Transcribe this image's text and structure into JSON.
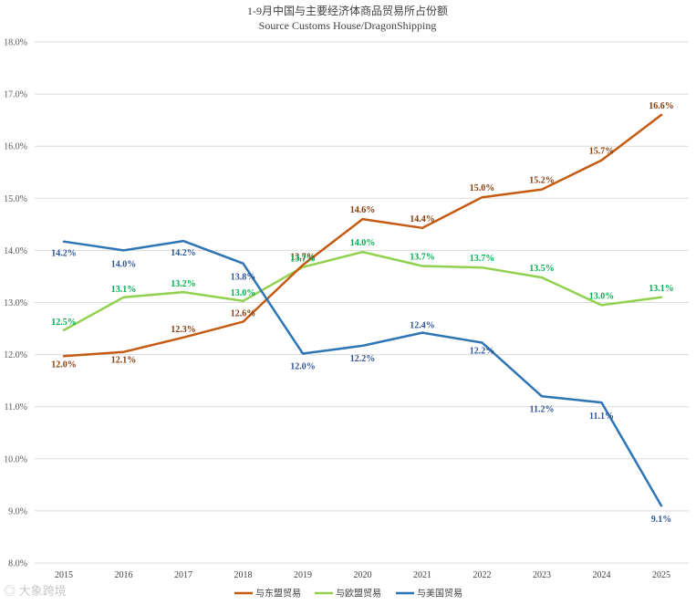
{
  "chart_data": {
    "type": "line",
    "title": "1-9月中国与主要经济体商品贸易所占份额",
    "subtitle": "Source Customs House/DragonShipping",
    "categories": [
      "2015",
      "2016",
      "2017",
      "2018",
      "2019",
      "2020",
      "2021",
      "2022",
      "2023",
      "2024",
      "2025"
    ],
    "ylim": [
      8.0,
      18.0
    ],
    "yticks": [
      "8.0%",
      "9.0%",
      "10.0%",
      "11.0%",
      "12.0%",
      "13.0%",
      "14.0%",
      "15.0%",
      "16.0%",
      "17.0%",
      "18.0%"
    ],
    "grid": true,
    "legend_position": "bottom",
    "series": [
      {
        "name": "与东盟贸易",
        "color": "#c55a11",
        "label_color": "#843c0c",
        "values": [
          11.97,
          12.05,
          12.33,
          12.63,
          13.72,
          14.6,
          14.43,
          15.02,
          15.17,
          15.73,
          16.6
        ],
        "labels": [
          "12.0%",
          "12.1%",
          "12.3%",
          "12.6%",
          "13.7%",
          "14.6%",
          "14.4%",
          "15.0%",
          "15.2%",
          "15.7%",
          "16.6%"
        ]
      },
      {
        "name": "与欧盟贸易",
        "color": "#92d050",
        "label_color": "#00b050",
        "values": [
          12.47,
          13.1,
          13.2,
          13.03,
          13.68,
          13.97,
          13.7,
          13.67,
          13.48,
          12.95,
          13.1
        ],
        "labels": [
          "12.5%",
          "13.1%",
          "13.2%",
          "13.0%",
          "13.7%",
          "14.0%",
          "13.7%",
          "13.7%",
          "13.5%",
          "13.0%",
          "13.1%"
        ]
      },
      {
        "name": "与美国贸易",
        "color": "#2e75b6",
        "label_color": "#2f5597",
        "values": [
          14.17,
          14.0,
          14.18,
          13.75,
          12.02,
          12.17,
          12.42,
          12.23,
          11.2,
          11.08,
          9.1
        ],
        "labels": [
          "14.2%",
          "14.0%",
          "14.2%",
          "13.8%",
          "12.0%",
          "12.2%",
          "12.4%",
          "12.2%",
          "11.2%",
          "11.1%",
          "9.1%"
        ]
      }
    ]
  },
  "watermark": "大象跨境"
}
